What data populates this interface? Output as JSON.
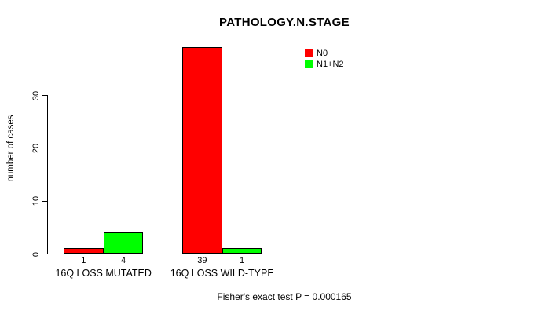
{
  "chart_data": {
    "type": "bar",
    "title": "PATHOLOGY.N.STAGE",
    "ylabel": "number of cases",
    "xlabel": "",
    "categories": [
      "16Q LOSS MUTATED",
      "16Q LOSS WILD-TYPE"
    ],
    "series": [
      {
        "name": "N0",
        "color": "#ff0000",
        "values": [
          1,
          39
        ]
      },
      {
        "name": "N1+N2",
        "color": "#00ff00",
        "values": [
          4,
          1
        ]
      }
    ],
    "bar_value_labels": [
      [
        "1",
        "39"
      ],
      [
        "4",
        "1"
      ]
    ],
    "yticks": [
      0,
      10,
      20,
      30
    ],
    "ylim": [
      0,
      39
    ],
    "grid": false,
    "legend_position": "top-right",
    "annotation": "Fisher's exact test P = 0.000165"
  }
}
